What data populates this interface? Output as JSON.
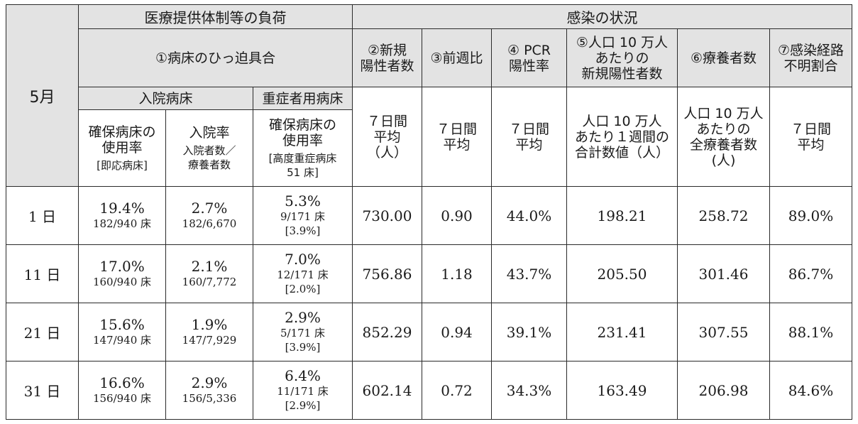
{
  "header": {
    "month": "5月",
    "group_load": "医療提供体制等の負荷",
    "group_infection": "感染の状況",
    "bed_pressure": "①病床のひっ迫具合",
    "new_positive": [
      "②新規",
      "陽性者数"
    ],
    "week_ratio": "③前週比",
    "pcr": [
      "④ PCR",
      "陽性率"
    ],
    "per100k": [
      "⑤人口 10 万人",
      "あたりの",
      "新規陽性者数"
    ],
    "recuperating": "⑥療養者数",
    "unknown_route": [
      "⑦感染経路",
      "不明割合"
    ],
    "inpatient_beds": "入院病床",
    "severe_beds": "重症者用病床"
  },
  "subheader": {
    "bed_usage": [
      "確保病床の",
      "使用率"
    ],
    "bed_usage_note": "[即応病床]",
    "admission_rate": "入院率",
    "admission_rate_note": [
      "入院者数／",
      "療養者数"
    ],
    "severe_usage": [
      "確保病床の",
      "使用率"
    ],
    "severe_usage_note": [
      "[高度重症病床",
      "51 床]"
    ],
    "avg7_people": [
      "７日間",
      "平均",
      "（人）"
    ],
    "avg7_a": [
      "７日間",
      "平均"
    ],
    "avg7_b": [
      "７日間",
      "平均"
    ],
    "weekly_total": [
      "人口 10 万人",
      "あたり１週間の",
      "合計数値（人）"
    ],
    "all_recuperating": [
      "人口 10 万人",
      "あたりの",
      "全療養者数",
      "(人)"
    ],
    "avg7_c": [
      "７日間",
      "平均"
    ]
  },
  "rows": [
    {
      "day": "1 日",
      "bed_rate": "19.4%",
      "bed_count": "182/940 床",
      "adm_rate": "2.7%",
      "adm_count": "182/6,670",
      "sev_rate": "5.3%",
      "sev_count": "9/171 床",
      "sev_note": "[3.9%]",
      "new_pos": "730.00",
      "week_ratio": "0.90",
      "pcr": "44.0%",
      "per100k": "198.21",
      "recup": "258.72",
      "unknown": "89.0%"
    },
    {
      "day": "11 日",
      "bed_rate": "17.0%",
      "bed_count": "160/940 床",
      "adm_rate": "2.1%",
      "adm_count": "160/7,772",
      "sev_rate": "7.0%",
      "sev_count": "12/171 床",
      "sev_note": "[2.0%]",
      "new_pos": "756.86",
      "week_ratio": "1.18",
      "pcr": "43.7%",
      "per100k": "205.50",
      "recup": "301.46",
      "unknown": "86.7%"
    },
    {
      "day": "21 日",
      "bed_rate": "15.6%",
      "bed_count": "147/940 床",
      "adm_rate": "1.9%",
      "adm_count": "147/7,929",
      "sev_rate": "2.9%",
      "sev_count": "5/171 床",
      "sev_note": "[3.9%]",
      "new_pos": "852.29",
      "week_ratio": "0.94",
      "pcr": "39.1%",
      "per100k": "231.41",
      "recup": "307.55",
      "unknown": "88.1%"
    },
    {
      "day": "31 日",
      "bed_rate": "16.6%",
      "bed_count": "156/940 床",
      "adm_rate": "2.9%",
      "adm_count": "156/5,336",
      "sev_rate": "6.4%",
      "sev_count": "11/171 床",
      "sev_note": "[2.9%]",
      "new_pos": "602.14",
      "week_ratio": "0.72",
      "pcr": "34.3%",
      "per100k": "163.49",
      "recup": "206.98",
      "unknown": "84.6%"
    }
  ]
}
